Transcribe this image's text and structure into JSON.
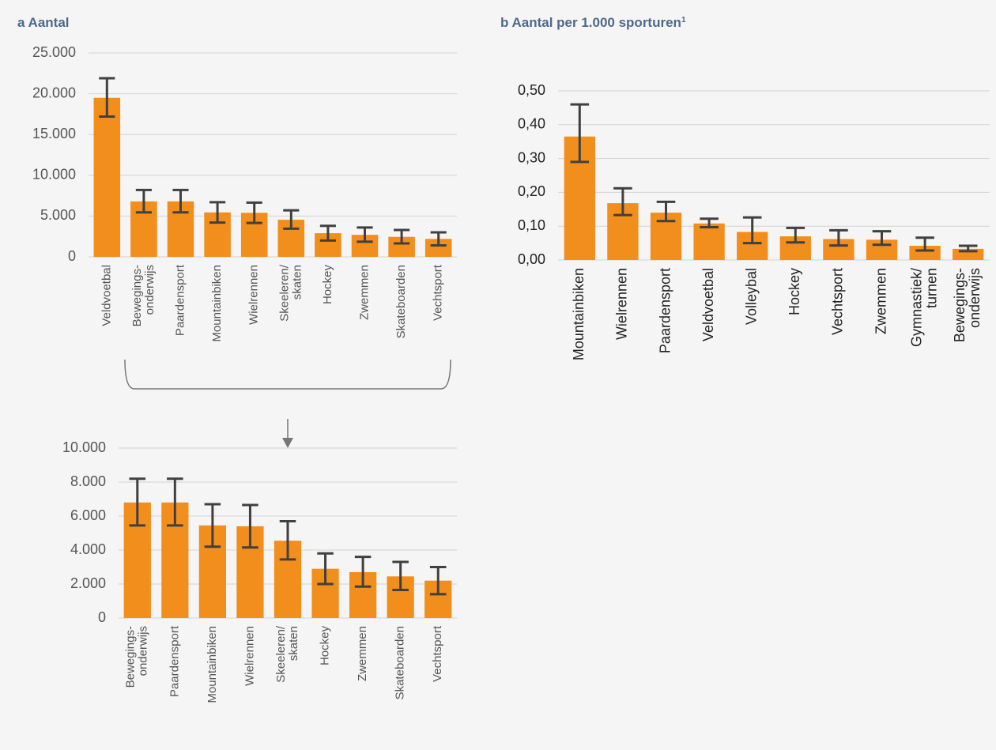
{
  "chart_data": [
    {
      "type": "bar",
      "title": "a Aantal",
      "categories": [
        "Veldvoetbal",
        [
          "Bewegings-",
          "onderwijs"
        ],
        "Paardensport",
        "Mountainbiken",
        "Wielrennen",
        [
          "Skeeleren/",
          "skaten"
        ],
        "Hockey",
        "Zwemmen",
        "Skateboarden",
        "Vechtsport"
      ],
      "values": [
        19500,
        6800,
        6800,
        5450,
        5400,
        4550,
        2900,
        2700,
        2450,
        2200
      ],
      "ci_low": [
        17200,
        5450,
        5450,
        4200,
        4150,
        3450,
        2000,
        1850,
        1650,
        1400
      ],
      "ci_high": [
        21900,
        8200,
        8200,
        6700,
        6650,
        5700,
        3800,
        3600,
        3300,
        3000
      ],
      "color": "#f28e1c",
      "error_color": "#404040",
      "ylim": [
        0,
        25000
      ],
      "yticks": [
        0,
        {
          "value": 5000,
          "label": "5.000"
        },
        {
          "value": 10000,
          "label": "10.000"
        },
        {
          "value": 15000,
          "label": "15.000"
        },
        {
          "value": 20000,
          "label": "20.000"
        },
        {
          "value": 25000,
          "label": "25.000"
        }
      ],
      "grid": true
    },
    {
      "type": "bar",
      "title": "b Aantal per 1.000 sporturen",
      "title_note": "1",
      "categories": [
        "Mountainbiken",
        "Wielrennen",
        "Paardensport",
        "Veldvoetbal",
        "Volleybal",
        "Hockey",
        "Vechtsport",
        "Zwemmen",
        [
          "Gymnastiek/",
          "turnen"
        ],
        [
          "Bewegings-",
          "onderwijs"
        ]
      ],
      "values": [
        0.365,
        0.168,
        0.14,
        0.108,
        0.083,
        0.07,
        0.062,
        0.06,
        0.042,
        0.033
      ],
      "ci_low": [
        0.29,
        0.133,
        0.115,
        0.097,
        0.05,
        0.052,
        0.043,
        0.045,
        0.028,
        0.026
      ],
      "ci_high": [
        0.46,
        0.212,
        0.172,
        0.122,
        0.126,
        0.095,
        0.088,
        0.085,
        0.066,
        0.042
      ],
      "color": "#f28e1c",
      "error_color": "#404040",
      "ylim": [
        0,
        0.5
      ],
      "yticks": [
        {
          "value": 0,
          "label": "0,00"
        },
        {
          "value": 0.1,
          "label": "0,10"
        },
        {
          "value": 0.2,
          "label": "0,20"
        },
        {
          "value": 0.3,
          "label": "0,30"
        },
        {
          "value": 0.4,
          "label": "0,40"
        },
        {
          "value": 0.5,
          "label": "0,50"
        }
      ],
      "grid": true
    },
    {
      "type": "bar",
      "categories": [
        [
          "Bewegings-",
          "onderwijs"
        ],
        "Paardensport",
        "Mountainbiken",
        "Wielrennen",
        [
          "Skeeleren/",
          "skaten"
        ],
        "Hockey",
        "Zwemmen",
        "Skateboarden",
        "Vechtsport"
      ],
      "values": [
        6800,
        6800,
        5450,
        5400,
        4550,
        2900,
        2700,
        2450,
        2200
      ],
      "ci_low": [
        5450,
        5450,
        4200,
        4150,
        3450,
        2000,
        1850,
        1650,
        1400
      ],
      "ci_high": [
        8200,
        8200,
        6700,
        6650,
        5700,
        3800,
        3600,
        3300,
        3000
      ],
      "color": "#f28e1c",
      "error_color": "#404040",
      "ylim": [
        0,
        10000
      ],
      "yticks": [
        0,
        {
          "value": 2000,
          "label": "2.000"
        },
        {
          "value": 4000,
          "label": "4.000"
        },
        {
          "value": 6000,
          "label": "6.000"
        },
        {
          "value": 8000,
          "label": "8.000"
        },
        {
          "value": 10000,
          "label": "10.000"
        }
      ],
      "grid": true
    }
  ]
}
